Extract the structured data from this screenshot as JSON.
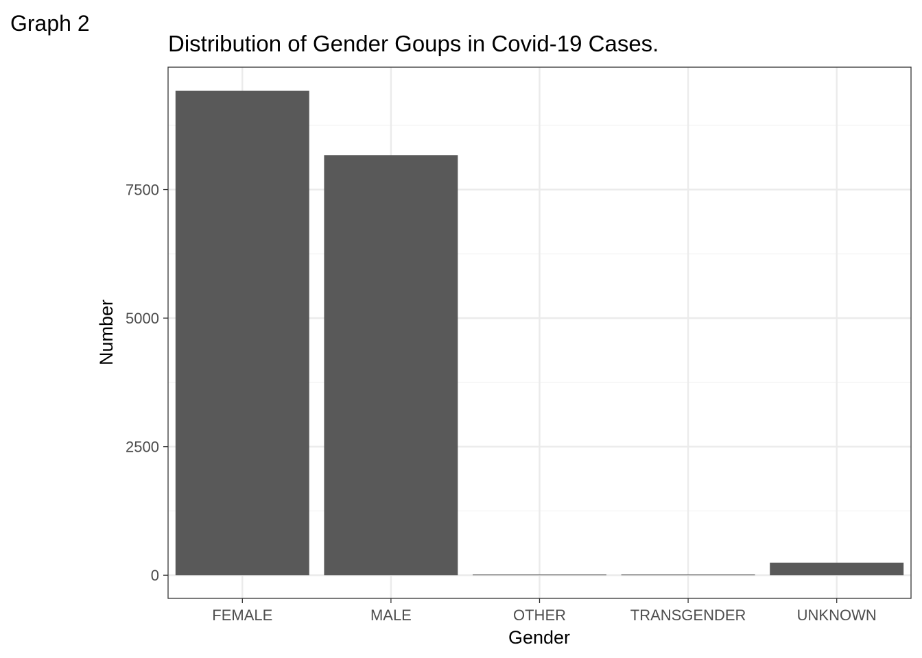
{
  "figure": {
    "tag": "Graph 2"
  },
  "chart_data": {
    "type": "bar",
    "title": "Distribution of Gender Goups in Covid-19 Cases.",
    "xlabel": "Gender",
    "ylabel": "Number",
    "categories": [
      "FEMALE",
      "MALE",
      "OTHER",
      "TRANSGENDER",
      "UNKNOWN"
    ],
    "values": [
      9420,
      8170,
      8,
      6,
      245
    ],
    "ylim": [
      -450,
      9880
    ],
    "yticks": [
      0,
      2500,
      5000,
      7500
    ],
    "ytick_labels": [
      "0",
      "2500",
      "5000",
      "7500"
    ],
    "grid": true,
    "bar_color": "#595959",
    "legend": "none"
  }
}
